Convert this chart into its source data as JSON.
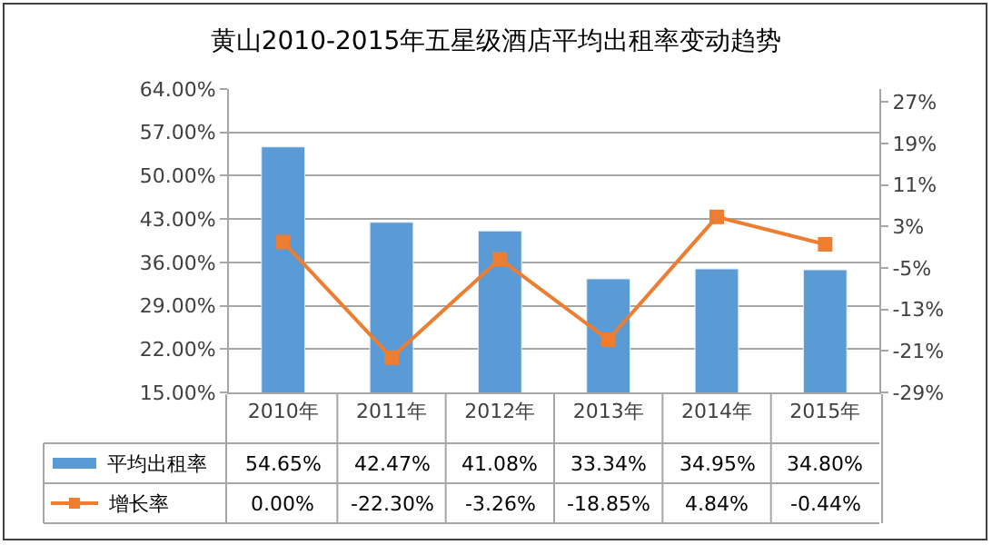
{
  "chart_data": {
    "type": "bar",
    "title": "黄山2010-2015年五星级酒店平均出租率变动趋势",
    "categories": [
      "2010年",
      "2011年",
      "2012年",
      "2013年",
      "2014年",
      "2015年"
    ],
    "series": [
      {
        "name": "平均出租率",
        "color": "#5b9bd5",
        "values": [
          54.65,
          42.47,
          41.08,
          33.34,
          34.95,
          34.8
        ],
        "value_labels": [
          "54.65%",
          "42.47%",
          "41.08%",
          "33.34%",
          "34.95%",
          "34.80%"
        ]
      },
      {
        "name": "增长率",
        "type": "line",
        "axis": "y2",
        "color": "#ed7d31",
        "marker": "square",
        "values": [
          0.0,
          -22.3,
          -3.26,
          -18.85,
          4.84,
          -0.44
        ],
        "value_labels": [
          "0.00%",
          "-22.30%",
          "-3.26%",
          "-18.85%",
          "4.84%",
          "-0.44%"
        ]
      }
    ],
    "ylim": [
      15,
      64
    ],
    "yticks": [
      {
        "value": 15,
        "label": "15.00%"
      },
      {
        "value": 22,
        "label": "22.00%"
      },
      {
        "value": 29,
        "label": "29.00%"
      },
      {
        "value": 36,
        "label": "36.00%"
      },
      {
        "value": 43,
        "label": "43.00%"
      },
      {
        "value": 50,
        "label": "50.00%"
      },
      {
        "value": 57,
        "label": "57.00%"
      },
      {
        "value": 64,
        "label": "64.00%"
      }
    ],
    "y2lim": [
      -29,
      29.5
    ],
    "y2ticks": [
      {
        "value": -29,
        "label": "-29%"
      },
      {
        "value": -21,
        "label": "-21%"
      },
      {
        "value": -13,
        "label": "-13%"
      },
      {
        "value": -5,
        "label": "-5%"
      },
      {
        "value": 3,
        "label": "3%"
      },
      {
        "value": 11,
        "label": "11%"
      },
      {
        "value": 19,
        "label": "19%"
      },
      {
        "value": 27,
        "label": "27%"
      }
    ],
    "grid": "y",
    "legend": "bottom",
    "line_style": "solid"
  }
}
